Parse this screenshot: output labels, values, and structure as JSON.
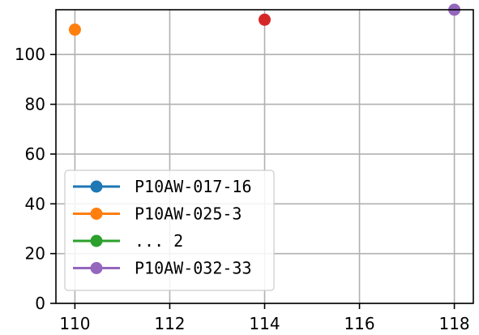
{
  "chart_data": {
    "type": "scatter",
    "title": "",
    "xlabel": "",
    "ylabel": "",
    "xlim": [
      109.6,
      118.4
    ],
    "ylim": [
      0,
      118
    ],
    "x_ticks": [
      "110",
      "112",
      "114",
      "116",
      "118"
    ],
    "y_ticks": [
      "0",
      "20",
      "40",
      "60",
      "80",
      "100"
    ],
    "grid": true,
    "legend_position": "lower-left",
    "series": [
      {
        "name": "P10AW-017-16",
        "color": "#1f77b4",
        "points": []
      },
      {
        "name": "P10AW-025-3",
        "color": "#ff7f0e",
        "points": [
          {
            "x": 110,
            "y": 110
          }
        ]
      },
      {
        "name": "... 2",
        "color": "#2ca02c",
        "points": []
      },
      {
        "name": null,
        "color": "#d62728",
        "points": [
          {
            "x": 114,
            "y": 114
          }
        ]
      },
      {
        "name": "P10AW-032-33",
        "color": "#9467bd",
        "points": [
          {
            "x": 118,
            "y": 118
          }
        ]
      }
    ]
  }
}
